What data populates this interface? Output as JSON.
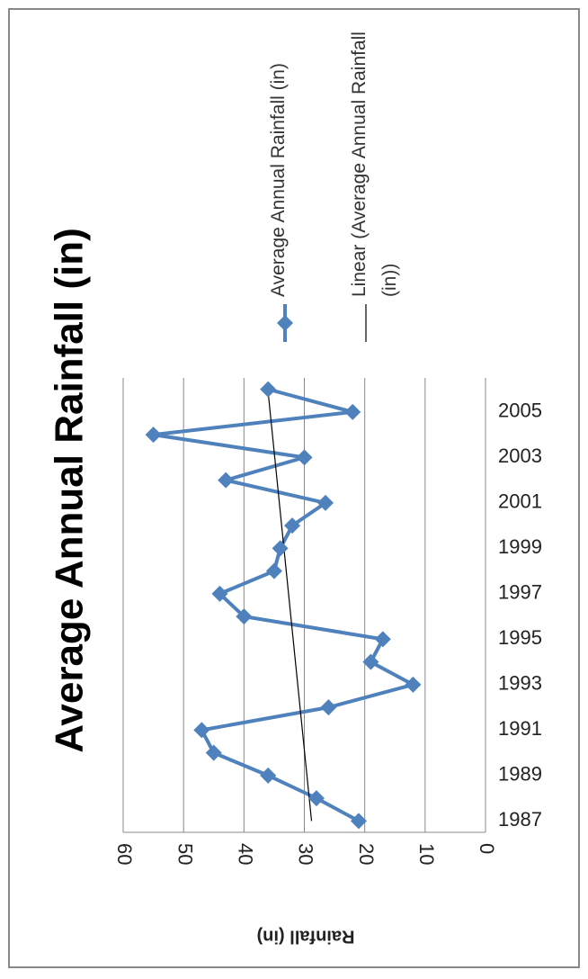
{
  "chart_data": {
    "type": "line",
    "title": "Average Annual Rainfall (in)",
    "y_label": "Rainfall (in)",
    "categories": [
      "1987",
      null,
      "1989",
      null,
      "1991",
      null,
      "1993",
      null,
      "1995",
      null,
      "1997",
      null,
      "1999",
      null,
      "2001",
      null,
      "2003",
      null,
      "2005",
      null
    ],
    "series": [
      {
        "name": "Average Annual Rainfall (in)",
        "color": "#4f81bd",
        "values": [
          21,
          28,
          36,
          45,
          47,
          26,
          12,
          19,
          17,
          40,
          44,
          35,
          34,
          32,
          26.5,
          43,
          30,
          55,
          22,
          36
        ]
      }
    ],
    "trendline": {
      "name": "Linear (Average Annual Rainfall (in))",
      "color": "#000000"
    },
    "ylim": [
      0,
      60
    ],
    "yticks": [
      0,
      10,
      20,
      30,
      40,
      50,
      60
    ],
    "grid": true
  }
}
